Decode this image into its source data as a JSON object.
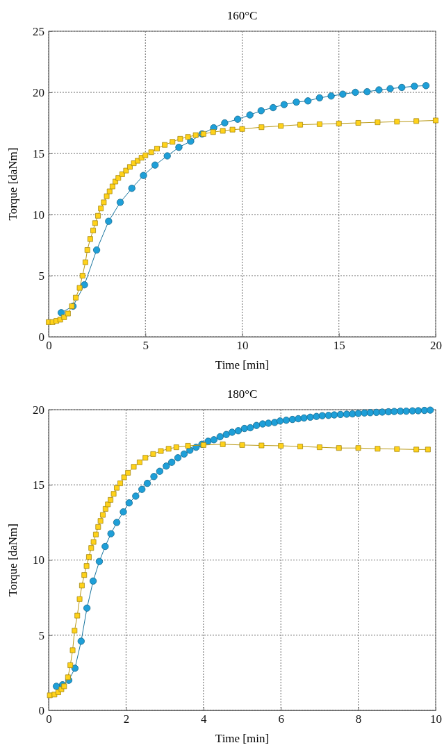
{
  "chart_data": [
    {
      "type": "line",
      "title": "160°C",
      "xlabel": "Time [min]",
      "ylabel": "Torque [daNm]",
      "xlim": [
        0,
        20
      ],
      "ylim": [
        0,
        25
      ],
      "xticks": [
        0,
        5,
        10,
        15,
        20
      ],
      "yticks": [
        0,
        5,
        10,
        15,
        20,
        25
      ],
      "grid": true,
      "line_style": "solid",
      "series": [
        {
          "color": "#1e9fd8",
          "marker": "circle",
          "x": [
            0.65,
            1.26,
            1.85,
            2.48,
            3.1,
            3.7,
            4.3,
            4.9,
            5.5,
            6.13,
            6.73,
            7.34,
            7.93,
            8.53,
            9.1,
            9.77,
            10.4,
            10.98,
            11.6,
            12.17,
            12.8,
            13.4,
            14.0,
            14.6,
            15.2,
            15.85,
            16.46,
            17.07,
            17.65,
            18.25,
            18.9,
            19.5
          ],
          "values": [
            1.97,
            2.5,
            4.25,
            7.1,
            9.45,
            11.0,
            12.15,
            13.2,
            14.05,
            14.8,
            15.5,
            16.0,
            16.6,
            17.1,
            17.5,
            17.8,
            18.15,
            18.5,
            18.75,
            19.0,
            19.2,
            19.3,
            19.55,
            19.7,
            19.85,
            20.0,
            20.05,
            20.2,
            20.3,
            20.4,
            20.5,
            20.55
          ]
        },
        {
          "color": "#ffd21a",
          "marker": "square",
          "x": [
            0,
            0.2,
            0.4,
            0.6,
            0.8,
            1.0,
            1.2,
            1.4,
            1.6,
            1.75,
            1.9,
            2.0,
            2.15,
            2.3,
            2.4,
            2.55,
            2.7,
            2.85,
            3.0,
            3.15,
            3.3,
            3.45,
            3.6,
            3.8,
            4.0,
            4.2,
            4.4,
            4.6,
            4.8,
            5.0,
            5.3,
            5.6,
            6.0,
            6.4,
            6.8,
            7.2,
            7.6,
            8.0,
            8.5,
            9.0,
            9.5,
            10,
            11,
            12,
            13,
            14,
            15,
            16,
            17,
            18,
            19,
            20
          ],
          "values": [
            1.2,
            1.2,
            1.3,
            1.4,
            1.6,
            1.9,
            2.5,
            3.2,
            4.0,
            5.0,
            6.1,
            7.1,
            8.0,
            8.7,
            9.3,
            9.9,
            10.5,
            11.0,
            11.5,
            11.9,
            12.3,
            12.7,
            13.0,
            13.3,
            13.6,
            13.9,
            14.2,
            14.4,
            14.65,
            14.85,
            15.1,
            15.4,
            15.7,
            15.95,
            16.2,
            16.35,
            16.5,
            16.6,
            16.75,
            16.85,
            16.95,
            17.0,
            17.15,
            17.25,
            17.35,
            17.4,
            17.45,
            17.5,
            17.55,
            17.6,
            17.65,
            17.7
          ]
        }
      ]
    },
    {
      "type": "line",
      "title": "180°C",
      "xlabel": "Time [min]",
      "ylabel": "Torque [daNm]",
      "xlim": [
        0,
        10
      ],
      "ylim": [
        0,
        20
      ],
      "xticks": [
        0,
        2,
        4,
        6,
        8,
        10
      ],
      "yticks": [
        0,
        5,
        10,
        15,
        20
      ],
      "grid": true,
      "line_style": "solid",
      "series": [
        {
          "color": "#1e9fd8",
          "marker": "circle",
          "x": [
            0.2,
            0.36,
            0.52,
            0.68,
            0.84,
            0.99,
            1.15,
            1.31,
            1.46,
            1.61,
            1.76,
            1.93,
            2.08,
            2.25,
            2.41,
            2.55,
            2.72,
            2.87,
            3.04,
            3.18,
            3.34,
            3.5,
            3.65,
            3.81,
            3.96,
            4.12,
            4.27,
            4.43,
            4.59,
            4.74,
            4.9,
            5.06,
            5.21,
            5.37,
            5.53,
            5.68,
            5.84,
            5.98,
            6.14,
            6.3,
            6.45,
            6.6,
            6.76,
            6.92,
            7.07,
            7.23,
            7.38,
            7.54,
            7.7,
            7.85,
            8.0,
            8.16,
            8.31,
            8.47,
            8.62,
            8.78,
            8.93,
            9.09,
            9.24,
            9.4,
            9.55,
            9.71,
            9.86
          ],
          "values": [
            1.6,
            1.7,
            2.0,
            2.8,
            4.6,
            6.8,
            8.6,
            9.9,
            10.9,
            11.75,
            12.5,
            13.2,
            13.8,
            14.25,
            14.7,
            15.1,
            15.55,
            15.9,
            16.25,
            16.5,
            16.8,
            17.05,
            17.3,
            17.5,
            17.7,
            17.9,
            18.0,
            18.2,
            18.35,
            18.5,
            18.6,
            18.75,
            18.8,
            18.95,
            19.05,
            19.1,
            19.15,
            19.25,
            19.3,
            19.35,
            19.4,
            19.45,
            19.5,
            19.55,
            19.6,
            19.62,
            19.65,
            19.68,
            19.7,
            19.72,
            19.75,
            19.78,
            19.8,
            19.82,
            19.84,
            19.86,
            19.88,
            19.9,
            19.9,
            19.92,
            19.93,
            19.95,
            19.97
          ]
        },
        {
          "color": "#ffd21a",
          "marker": "square",
          "x": [
            0.03,
            0.15,
            0.25,
            0.33,
            0.4,
            0.5,
            0.56,
            0.62,
            0.67,
            0.74,
            0.8,
            0.86,
            0.92,
            0.98,
            1.04,
            1.1,
            1.16,
            1.22,
            1.28,
            1.34,
            1.4,
            1.47,
            1.53,
            1.6,
            1.68,
            1.76,
            1.85,
            1.95,
            2.05,
            2.2,
            2.35,
            2.5,
            2.7,
            2.9,
            3.1,
            3.3,
            3.6,
            4.0,
            4.5,
            5.0,
            5.5,
            6.0,
            6.5,
            7.0,
            7.5,
            8.0,
            8.5,
            9.0,
            9.5,
            9.8
          ],
          "values": [
            1.0,
            1.05,
            1.2,
            1.4,
            1.6,
            2.2,
            3.0,
            4.0,
            5.3,
            6.3,
            7.4,
            8.3,
            9.0,
            9.6,
            10.2,
            10.8,
            11.2,
            11.7,
            12.2,
            12.6,
            13.0,
            13.4,
            13.7,
            14.0,
            14.4,
            14.8,
            15.1,
            15.5,
            15.8,
            16.2,
            16.5,
            16.8,
            17.05,
            17.25,
            17.4,
            17.5,
            17.6,
            17.65,
            17.7,
            17.65,
            17.62,
            17.6,
            17.55,
            17.5,
            17.45,
            17.45,
            17.4,
            17.38,
            17.35,
            17.35
          ]
        }
      ]
    }
  ]
}
